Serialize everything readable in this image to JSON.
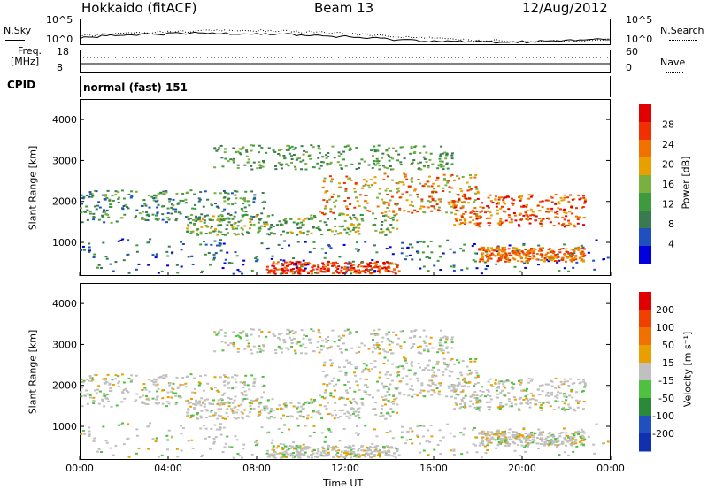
{
  "header": {
    "title": "Hokkaido (fitACF)",
    "beam": "Beam 13",
    "date": "12/Aug/2012"
  },
  "noise_panel": {
    "left_label": "N.Sky",
    "right_label": "N.Search",
    "left_ticks": [
      "10^5",
      "10^0"
    ],
    "right_ticks": [
      "10^5",
      "10^0"
    ]
  },
  "freq_panel": {
    "left_label_line1": "Freq.",
    "left_label_line2": "[MHz]",
    "right_label": "Nave",
    "left_ticks": [
      "18",
      "8"
    ],
    "right_ticks": [
      "60",
      "0"
    ]
  },
  "cpid": {
    "label": "CPID",
    "value": "normal (fast) 151"
  },
  "chart_data": [
    {
      "type": "heatmap",
      "name": "power",
      "ylabel": "Slant Range [km]",
      "ylim": [
        180,
        4500
      ],
      "yticks": [
        "4000",
        "3000",
        "2000",
        "1000"
      ],
      "colorbar_label": "Power [dB]",
      "colorbar_ticks": [
        "28",
        "24",
        "20",
        "16",
        "12",
        "8",
        "4"
      ],
      "colorbar_colors": [
        "#0000dd",
        "#2050c0",
        "#3a7a50",
        "#3d9a3d",
        "#7ab040",
        "#e8a000",
        "#f07000",
        "#f03000",
        "#e00000"
      ]
    },
    {
      "type": "heatmap",
      "name": "velocity",
      "ylabel": "Slant Range [km]",
      "xlabel": "Time UT",
      "ylim": [
        180,
        4500
      ],
      "yticks": [
        "4000",
        "3000",
        "2000",
        "1000"
      ],
      "xticks": [
        "00:00",
        "04:00",
        "08:00",
        "12:00",
        "16:00",
        "20:00",
        "00:00"
      ],
      "colorbar_label": "Velocity [m s⁻¹]",
      "colorbar_ticks": [
        "200",
        "100",
        "50",
        "15",
        "-15",
        "-50",
        "-100",
        "-200"
      ],
      "colorbar_colors": [
        "#1030b0",
        "#2050c0",
        "#2a8a3a",
        "#50c040",
        "#c0c0c0",
        "#e8a000",
        "#f07000",
        "#f04000",
        "#e00000"
      ]
    }
  ]
}
